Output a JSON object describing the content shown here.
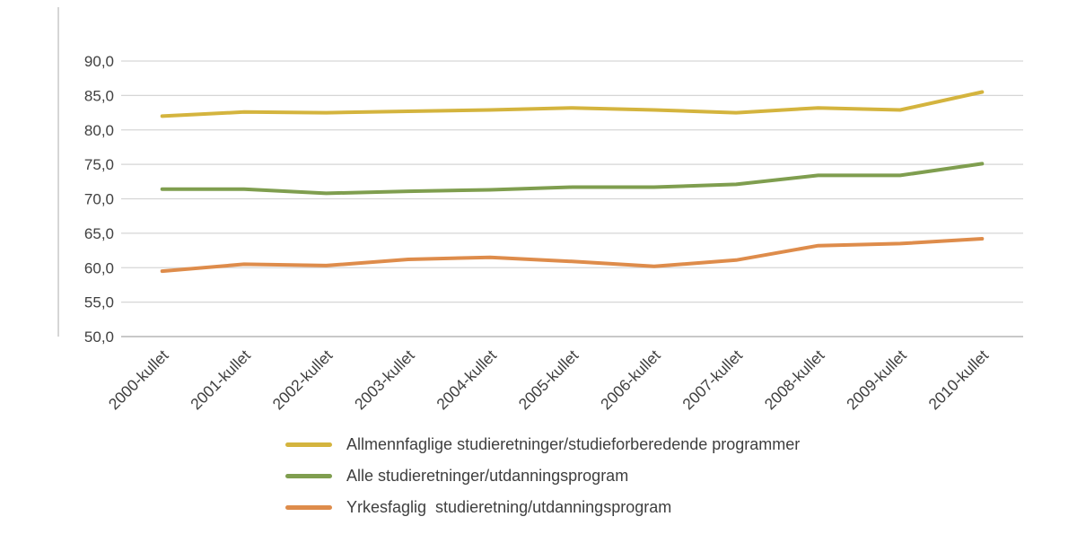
{
  "chart_data": {
    "type": "line",
    "title": "",
    "categories": [
      "2000-kullet",
      "2001-kullet",
      "2002-kullet",
      "2003-kullet",
      "2004-kullet",
      "2005-kullet",
      "2006-kullet",
      "2007-kullet",
      "2008-kullet",
      "2009-kullet",
      "2010-kullet"
    ],
    "ylim": [
      50,
      90
    ],
    "yticks": [
      50,
      55,
      60,
      65,
      70,
      75,
      80,
      85,
      90
    ],
    "ytick_labels": [
      "50,0",
      "55,0",
      "60,0",
      "65,0",
      "70,0",
      "75,0",
      "80,0",
      "85,0",
      "90,0"
    ],
    "grid": true,
    "legend_position": "bottom",
    "series": [
      {
        "name": "Allmennfaglige studieretninger/studieforberedende programmer",
        "color": "#d4b43e",
        "values": [
          82.0,
          82.6,
          82.5,
          82.7,
          82.9,
          83.2,
          82.9,
          82.5,
          83.2,
          82.9,
          85.5
        ]
      },
      {
        "name": "Alle studieretninger/utdanningsprogram",
        "color": "#7f9e4f",
        "values": [
          71.4,
          71.4,
          70.8,
          71.1,
          71.3,
          71.7,
          71.7,
          72.1,
          73.4,
          73.4,
          75.1
        ]
      },
      {
        "name": "Yrkesfaglig  studieretning/utdanningsprogram",
        "color": "#de8c4b",
        "values": [
          59.5,
          60.5,
          60.3,
          61.2,
          61.5,
          60.9,
          60.2,
          61.1,
          63.2,
          63.5,
          64.2
        ]
      }
    ],
    "colors": {
      "gridline": "#d6d6d6",
      "axis_line": "#a8a8a8",
      "border_line": "#bfbfbf",
      "text": "#404040"
    }
  }
}
